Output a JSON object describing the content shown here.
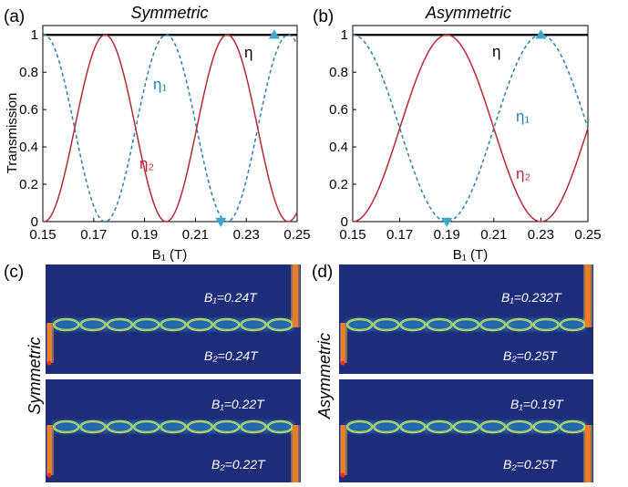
{
  "colors": {
    "eta": "#000000",
    "eta1": "#2a7fb3",
    "eta2": "#b52a33",
    "marker": "#3fa6c8",
    "field_background": "#1e2d7a"
  },
  "chart_data": [
    {
      "type": "line",
      "panel": "(a)",
      "title": "Symmetric",
      "xlabel": "B₁ (T)",
      "ylabel": "Transmission",
      "xlim": [
        0.15,
        0.25
      ],
      "ylim": [
        0,
        1.05
      ],
      "xticks": [
        "0.15",
        "0.17",
        "0.19",
        "0.21",
        "0.23",
        "0.25"
      ],
      "yticks": [
        "0",
        "0.2",
        "0.4",
        "0.6",
        "0.8",
        "1"
      ],
      "grid": false,
      "series": [
        {
          "name": "η",
          "style": "solid",
          "x": [
            0.15,
            0.25
          ],
          "y": [
            1,
            1
          ]
        },
        {
          "name": "η₁",
          "style": "dashed",
          "period": 0.048,
          "phase": 0.1505,
          "x_start": 0.15,
          "x_end": 0.25
        },
        {
          "name": "η₂",
          "style": "solid",
          "period": 0.048,
          "phase": 0.1745,
          "x_start": 0.15,
          "x_end": 0.25
        }
      ],
      "markers": [
        {
          "shape": "triangle-up",
          "x": 0.241,
          "y": 1
        },
        {
          "shape": "triangle-down",
          "x": 0.22,
          "y": 0
        }
      ]
    },
    {
      "type": "line",
      "panel": "(b)",
      "title": "Asymmetric",
      "xlabel": "B₁ (T)",
      "xlim": [
        0.15,
        0.25
      ],
      "ylim": [
        0,
        1.05
      ],
      "xticks": [
        "0.15",
        "0.17",
        "0.19",
        "0.21",
        "0.23",
        "0.25"
      ],
      "yticks": [
        "0",
        "0.2",
        "0.4",
        "0.6",
        "0.8",
        "1"
      ],
      "grid": false,
      "series": [
        {
          "name": "η",
          "style": "solid",
          "x": [
            0.15,
            0.25
          ],
          "y": [
            1,
            1
          ]
        },
        {
          "name": "η₁",
          "style": "dashed",
          "period": 0.08,
          "phase": 0.15,
          "x_start": 0.15,
          "x_end": 0.25
        },
        {
          "name": "η₂",
          "style": "solid",
          "period": 0.08,
          "phase": 0.19,
          "x_start": 0.15,
          "x_end": 0.25
        }
      ],
      "markers": [
        {
          "shape": "triangle-up",
          "x": 0.23,
          "y": 1
        },
        {
          "shape": "triangle-down",
          "x": 0.19,
          "y": 0
        }
      ]
    }
  ],
  "field_panels": [
    {
      "panel": "(c)",
      "side_label": "Symmetric",
      "frames": [
        {
          "b1_label": "B₁=0.24T",
          "b2_label": "B₂=0.24T",
          "exit": "top"
        },
        {
          "b1_label": "B₁=0.22T",
          "b2_label": "B₂=0.22T",
          "exit": "bottom"
        }
      ]
    },
    {
      "panel": "(d)",
      "side_label": "Asymmetric",
      "frames": [
        {
          "b1_label": "B₁=0.232T",
          "b2_label": "B₂=0.25T",
          "exit": "top"
        },
        {
          "b1_label": "B₁=0.19T",
          "b2_label": "B₂=0.25T",
          "exit": "bottom"
        }
      ]
    }
  ]
}
